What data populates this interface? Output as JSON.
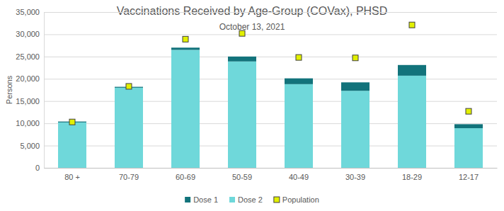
{
  "chart_data": {
    "type": "bar",
    "title": "Vaccinations Received by Age-Group (COVax), PHSD",
    "subtitle": "October 13, 2021",
    "y_label": "Persons",
    "categories": [
      "80 +",
      "70-79",
      "60-69",
      "50-59",
      "40-49",
      "30-39",
      "18-29",
      "12-17"
    ],
    "series": [
      {
        "name": "Dose 1",
        "type": "bar",
        "color": "#12737b",
        "values": [
          200,
          200,
          500,
          1100,
          1300,
          1900,
          2400,
          900
        ]
      },
      {
        "name": "Dose 2",
        "type": "bar",
        "color": "#6fd8da",
        "values": [
          10200,
          18000,
          26500,
          23900,
          18800,
          17300,
          20700,
          8900
        ]
      },
      {
        "name": "Population",
        "type": "scatter",
        "marker": "square",
        "color": "#e2f000",
        "values": [
          10300,
          18300,
          28900,
          30200,
          24800,
          24700,
          32100,
          12700
        ]
      }
    ],
    "stacked": true,
    "ylim": [
      0,
      35000
    ],
    "yticks": [
      0,
      {
        "value": 5000,
        "label": "5,000"
      },
      {
        "value": 10000,
        "label": "10,000"
      },
      {
        "value": 15000,
        "label": "15,000"
      },
      {
        "value": 20000,
        "label": "20,000"
      },
      {
        "value": 25000,
        "label": "25,000"
      },
      {
        "value": 30000,
        "label": "30,000"
      },
      {
        "value": 35000,
        "label": "35,000"
      }
    ],
    "grid": true,
    "legend": "bottom"
  }
}
